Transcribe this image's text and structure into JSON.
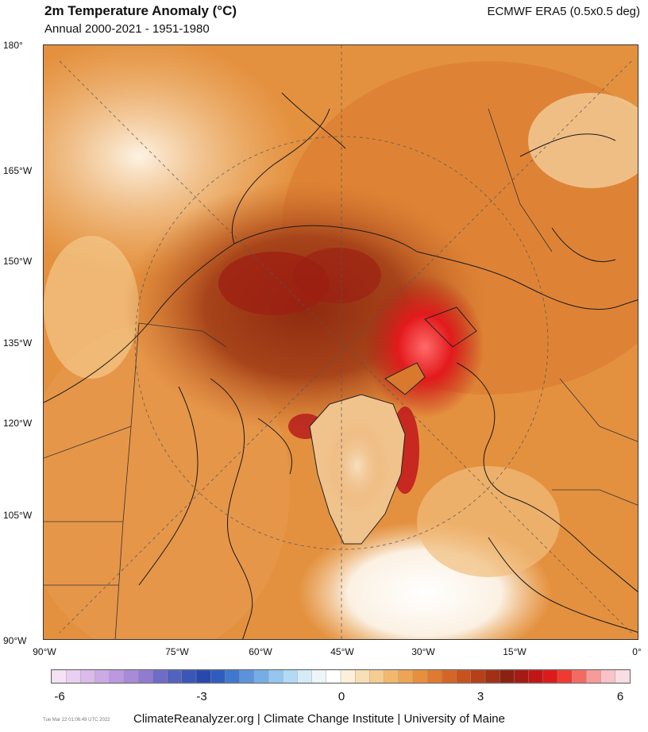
{
  "header": {
    "title": "2m Temperature Anomaly (°C)",
    "subtitle": "Annual 2000-2021 - 1951-1980",
    "source": "ECMWF ERA5 (0.5x0.5 deg)"
  },
  "axes": {
    "y_labels": [
      "180°",
      "165°W",
      "150°W",
      "135°W",
      "120°W",
      "105°W",
      "90°W"
    ],
    "x_labels": [
      "90°W",
      "75°W",
      "60°W",
      "45°W",
      "30°W",
      "15°W",
      "0°"
    ]
  },
  "colorbar": {
    "ticks": [
      "-6",
      "-3",
      "0",
      "3",
      "6"
    ],
    "range": [
      -6,
      6
    ],
    "colors": [
      "#f6e2f4",
      "#ead0f0",
      "#dcbaea",
      "#ccaae6",
      "#bc98e0",
      "#a88ad8",
      "#8f7cd0",
      "#6f6cc6",
      "#5262be",
      "#3a56b8",
      "#2a47ad",
      "#2f5dbf",
      "#3f78cf",
      "#5a93db",
      "#74aee5",
      "#94c6ee",
      "#b3daf4",
      "#d4ecf8",
      "#ecf6f8",
      "#ffffff",
      "#fcf0dc",
      "#f9dfb5",
      "#f5cd90",
      "#f2b96e",
      "#eda454",
      "#e88f3e",
      "#df7a2f",
      "#d56525",
      "#c8521d",
      "#b64017",
      "#a13014",
      "#8c2112",
      "#a51a14",
      "#c21516",
      "#dc1a1c",
      "#ee3a30",
      "#f46a63",
      "#f79a98",
      "#f8c2c6",
      "#f8dee2"
    ]
  },
  "footer": {
    "timestamp": "Tue Mar 22 01:06:49 UTC 2022",
    "credit": "ClimateReanalyzer.org | Climate Change Institute | University of Maine"
  }
}
